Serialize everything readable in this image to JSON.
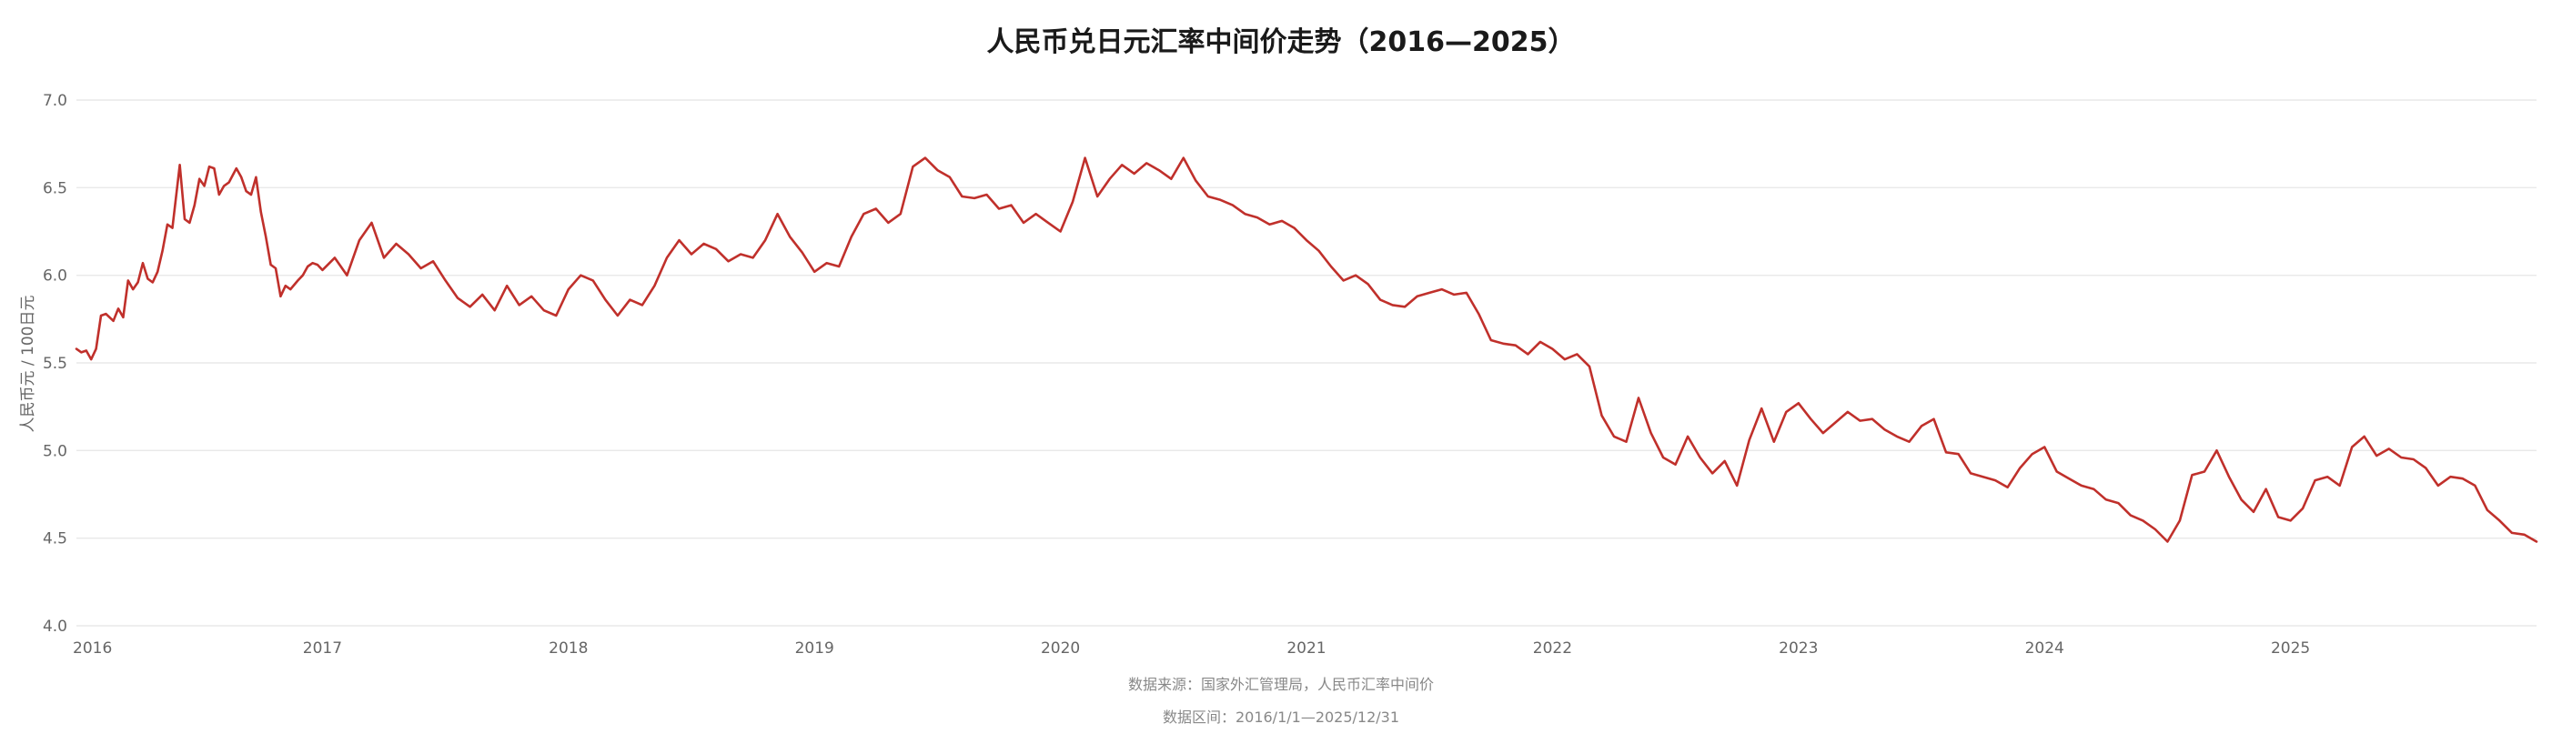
{
  "chart_data": {
    "type": "line",
    "title": "人民币兑日元汇率中间价走势（2016—2025）",
    "xlabel": "",
    "ylabel": "人民币元 / 100日元",
    "ylim": [
      4.0,
      7.0
    ],
    "yticks": [
      "4.0",
      "4.5",
      "5.0",
      "5.5",
      "6.0",
      "6.5",
      "7.0"
    ],
    "xlim": [
      2016.0,
      2026.0
    ],
    "xticks": [
      "2016",
      "2017",
      "2018",
      "2019",
      "2020",
      "2021",
      "2022",
      "2023",
      "2024",
      "2025"
    ],
    "grid": true,
    "legend": "none",
    "colors": {
      "line": "#c0302b",
      "grid": "#e9e9e9",
      "text": "#666666"
    },
    "series": [
      {
        "x": [
          2016.0,
          2016.02,
          2016.04,
          2016.06,
          2016.08,
          2016.1,
          2016.12,
          2016.15,
          2016.17,
          2016.19,
          2016.21,
          2016.23,
          2016.25,
          2016.27,
          2016.29,
          2016.31,
          2016.33,
          2016.35,
          2016.37,
          2016.39,
          2016.42,
          2016.44,
          2016.46,
          2016.48,
          2016.5,
          2016.52,
          2016.54,
          2016.56,
          2016.58,
          2016.6,
          2016.62,
          2016.65,
          2016.67,
          2016.69,
          2016.71,
          2016.73,
          2016.75,
          2016.77,
          2016.79,
          2016.81,
          2016.83,
          2016.85,
          2016.87,
          2016.9,
          2016.92,
          2016.94,
          2016.96,
          2016.98,
          2017.0,
          2017.05,
          2017.1,
          2017.15,
          2017.2,
          2017.25,
          2017.3,
          2017.35,
          2017.4,
          2017.45,
          2017.5,
          2017.55,
          2017.6,
          2017.65,
          2017.7,
          2017.75,
          2017.8,
          2017.85,
          2017.9,
          2017.95,
          2018.0,
          2018.05,
          2018.1,
          2018.15,
          2018.2,
          2018.25,
          2018.3,
          2018.35,
          2018.4,
          2018.45,
          2018.5,
          2018.55,
          2018.6,
          2018.65,
          2018.7,
          2018.75,
          2018.8,
          2018.85,
          2018.9,
          2018.95,
          2019.0,
          2019.05,
          2019.1,
          2019.15,
          2019.2,
          2019.25,
          2019.3,
          2019.35,
          2019.4,
          2019.45,
          2019.5,
          2019.55,
          2019.6,
          2019.65,
          2019.7,
          2019.75,
          2019.8,
          2019.85,
          2019.9,
          2019.95,
          2020.0,
          2020.05,
          2020.1,
          2020.15,
          2020.2,
          2020.25,
          2020.3,
          2020.35,
          2020.4,
          2020.45,
          2020.5,
          2020.55,
          2020.6,
          2020.65,
          2020.7,
          2020.75,
          2020.8,
          2020.85,
          2020.9,
          2020.95,
          2021.0,
          2021.05,
          2021.1,
          2021.15,
          2021.2,
          2021.25,
          2021.3,
          2021.35,
          2021.4,
          2021.45,
          2021.5,
          2021.55,
          2021.6,
          2021.65,
          2021.7,
          2021.75,
          2021.8,
          2021.85,
          2021.9,
          2021.95,
          2022.0,
          2022.05,
          2022.1,
          2022.15,
          2022.2,
          2022.25,
          2022.3,
          2022.35,
          2022.4,
          2022.45,
          2022.5,
          2022.55,
          2022.6,
          2022.65,
          2022.7,
          2022.75,
          2022.8,
          2022.85,
          2022.9,
          2022.95,
          2023.0,
          2023.05,
          2023.1,
          2023.15,
          2023.2,
          2023.25,
          2023.3,
          2023.35,
          2023.4,
          2023.45,
          2023.5,
          2023.55,
          2023.6,
          2023.65,
          2023.7,
          2023.75,
          2023.8,
          2023.85,
          2023.9,
          2023.95,
          2024.0,
          2024.05,
          2024.1,
          2024.15,
          2024.2,
          2024.25,
          2024.3,
          2024.35,
          2024.4,
          2024.45,
          2024.5,
          2024.55,
          2024.6,
          2024.65,
          2024.7,
          2024.75,
          2024.8,
          2024.85,
          2024.9,
          2024.95,
          2025.0,
          2025.05,
          2025.1,
          2025.15,
          2025.2,
          2025.25,
          2025.3,
          2025.35,
          2025.4,
          2025.45,
          2025.5,
          2025.55,
          2025.6,
          2025.65,
          2025.7,
          2025.75,
          2025.8,
          2025.85,
          2025.9,
          2025.95,
          2026.0
        ],
        "values": [
          5.58,
          5.56,
          5.57,
          5.52,
          5.58,
          5.77,
          5.78,
          5.74,
          5.81,
          5.76,
          5.97,
          5.92,
          5.96,
          6.07,
          5.98,
          5.96,
          6.02,
          6.14,
          6.29,
          6.27,
          6.63,
          6.32,
          6.3,
          6.4,
          6.55,
          6.51,
          6.62,
          6.61,
          6.46,
          6.51,
          6.53,
          6.61,
          6.56,
          6.48,
          6.46,
          6.56,
          6.36,
          6.22,
          6.06,
          6.04,
          5.88,
          5.94,
          5.92,
          5.97,
          6.0,
          6.05,
          6.07,
          6.06,
          6.03,
          6.1,
          6.0,
          6.2,
          6.3,
          6.1,
          6.18,
          6.12,
          6.04,
          6.08,
          5.97,
          5.87,
          5.82,
          5.89,
          5.8,
          5.94,
          5.83,
          5.88,
          5.8,
          5.77,
          5.92,
          6.0,
          5.97,
          5.86,
          5.77,
          5.86,
          5.83,
          5.94,
          6.1,
          6.2,
          6.12,
          6.18,
          6.15,
          6.08,
          6.12,
          6.1,
          6.2,
          6.35,
          6.22,
          6.13,
          6.02,
          6.07,
          6.05,
          6.22,
          6.35,
          6.38,
          6.3,
          6.35,
          6.62,
          6.67,
          6.6,
          6.56,
          6.45,
          6.44,
          6.46,
          6.38,
          6.4,
          6.3,
          6.35,
          6.3,
          6.25,
          6.42,
          6.67,
          6.45,
          6.55,
          6.63,
          6.58,
          6.64,
          6.6,
          6.55,
          6.67,
          6.54,
          6.45,
          6.43,
          6.4,
          6.35,
          6.33,
          6.29,
          6.31,
          6.27,
          6.2,
          6.14,
          6.05,
          5.97,
          6.0,
          5.95,
          5.86,
          5.83,
          5.82,
          5.88,
          5.9,
          5.92,
          5.89,
          5.9,
          5.78,
          5.63,
          5.61,
          5.6,
          5.55,
          5.62,
          5.58,
          5.52,
          5.55,
          5.48,
          5.2,
          5.08,
          5.05,
          5.3,
          5.1,
          4.96,
          4.92,
          5.08,
          4.96,
          4.87,
          4.94,
          4.8,
          5.06,
          5.24,
          5.05,
          5.22,
          5.27,
          5.18,
          5.1,
          5.16,
          5.22,
          5.17,
          5.18,
          5.12,
          5.08,
          5.05,
          5.14,
          5.18,
          4.99,
          4.98,
          4.87,
          4.85,
          4.83,
          4.79,
          4.9,
          4.98,
          5.02,
          4.88,
          4.84,
          4.8,
          4.78,
          4.72,
          4.7,
          4.63,
          4.6,
          4.55,
          4.48,
          4.6,
          4.86,
          4.88,
          5.0,
          4.85,
          4.72,
          4.65,
          4.78,
          4.62,
          4.6,
          4.67,
          4.83,
          4.85,
          4.8,
          5.02,
          5.08,
          4.97,
          5.01,
          4.96,
          4.95,
          4.9,
          4.8,
          4.85,
          4.84,
          4.8,
          4.66,
          4.6,
          4.53,
          4.52,
          4.48
        ]
      }
    ],
    "source_note": "数据来源：国家外汇管理局，人民币汇率中间价",
    "range_note": "数据区间：2016/1/1—2025/12/31"
  }
}
